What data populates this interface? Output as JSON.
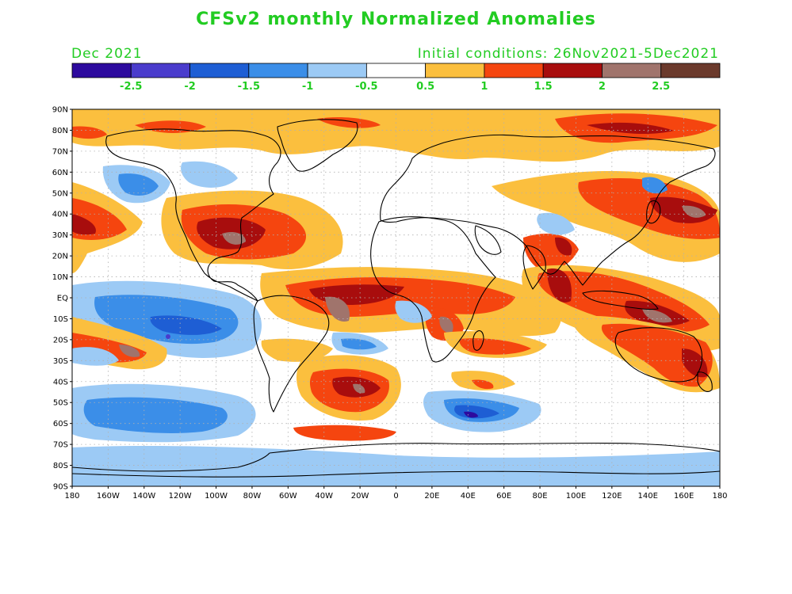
{
  "title": "CFSv2 monthly Normalized Anomalies",
  "month_label": "Dec 2021",
  "init_label": "Initial conditions: 26Nov2021-5Dec2021",
  "colorbar": {
    "colors": [
      "#2d0a9e",
      "#4a3ccc",
      "#1e5ed4",
      "#3b8ee8",
      "#9ccaf5",
      "#ffffff",
      "#fbbf3e",
      "#f5450f",
      "#a80d0d",
      "#a0746c",
      "#6b3a2c"
    ],
    "tick_labels": [
      "-2.5",
      "-2",
      "-1.5",
      "-1",
      "-0.5",
      "0.5",
      "1",
      "1.5",
      "2",
      "2.5"
    ]
  },
  "map": {
    "lat_labels": [
      "90N",
      "80N",
      "70N",
      "60N",
      "50N",
      "40N",
      "30N",
      "20N",
      "10N",
      "EQ",
      "10S",
      "20S",
      "30S",
      "40S",
      "50S",
      "60S",
      "70S",
      "80S",
      "90S"
    ],
    "lon_labels": [
      "180",
      "160W",
      "140W",
      "120W",
      "100W",
      "80W",
      "60W",
      "40W",
      "20W",
      "0",
      "20E",
      "40E",
      "60E",
      "80E",
      "100E",
      "120E",
      "140E",
      "160E",
      "180"
    ],
    "colors": {
      "ocean_base": "#ffffff",
      "coast": "#000000",
      "grid": "#aaaaaa"
    }
  }
}
